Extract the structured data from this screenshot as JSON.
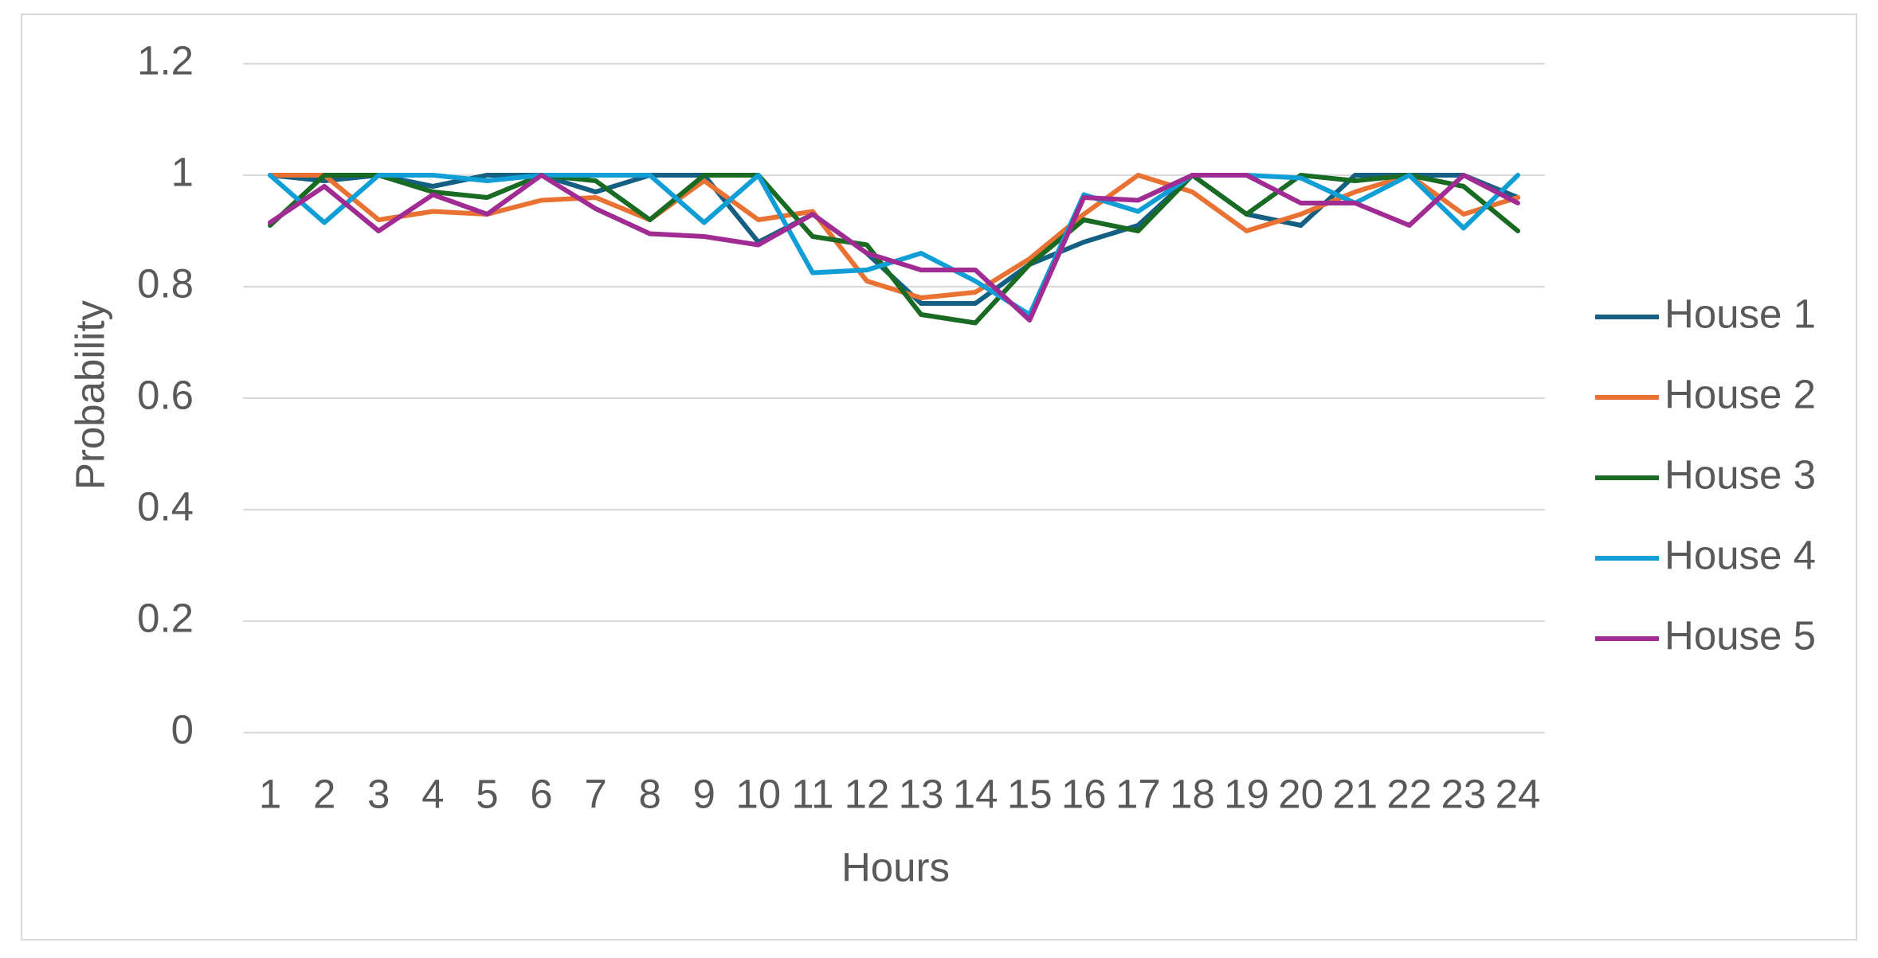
{
  "chart_data": {
    "type": "line",
    "x_label": "Hours",
    "y_label": "Probability",
    "categories": [
      "1",
      "2",
      "3",
      "4",
      "5",
      "6",
      "7",
      "8",
      "9",
      "10",
      "11",
      "12",
      "13",
      "14",
      "15",
      "16",
      "17",
      "18",
      "19",
      "20",
      "21",
      "22",
      "23",
      "24"
    ],
    "series": [
      {
        "name": "House 1",
        "color": "#156082",
        "values": [
          1.0,
          0.99,
          1.0,
          0.98,
          1.0,
          1.0,
          0.97,
          1.0,
          1.0,
          0.88,
          0.93,
          0.86,
          0.77,
          0.77,
          0.84,
          0.88,
          0.91,
          1.0,
          0.93,
          0.91,
          1.0,
          1.0,
          1.0,
          0.96
        ]
      },
      {
        "name": "House 2",
        "color": "#e97132",
        "values": [
          1.0,
          1.0,
          0.92,
          0.935,
          0.93,
          0.955,
          0.96,
          0.92,
          0.99,
          0.92,
          0.935,
          0.81,
          0.78,
          0.79,
          0.85,
          0.93,
          1.0,
          0.97,
          0.9,
          0.93,
          0.97,
          1.0,
          0.93,
          0.96
        ]
      },
      {
        "name": "House 3",
        "color": "#196b24",
        "values": [
          0.91,
          1.0,
          1.0,
          0.97,
          0.96,
          1.0,
          0.99,
          0.92,
          1.0,
          1.0,
          0.89,
          0.875,
          0.75,
          0.735,
          0.84,
          0.92,
          0.9,
          1.0,
          0.93,
          1.0,
          0.99,
          1.0,
          0.98,
          0.9
        ]
      },
      {
        "name": "House 4",
        "color": "#0f9ed5",
        "values": [
          1.0,
          0.915,
          1.0,
          1.0,
          0.99,
          1.0,
          1.0,
          1.0,
          0.915,
          1.0,
          0.825,
          0.83,
          0.86,
          0.81,
          0.75,
          0.965,
          0.935,
          1.0,
          1.0,
          0.995,
          0.95,
          1.0,
          0.905,
          1.0
        ]
      },
      {
        "name": "House 5",
        "color": "#a02b93",
        "values": [
          0.915,
          0.98,
          0.9,
          0.965,
          0.93,
          1.0,
          0.94,
          0.895,
          0.89,
          0.875,
          0.93,
          0.86,
          0.83,
          0.83,
          0.74,
          0.96,
          0.955,
          1.0,
          1.0,
          0.95,
          0.95,
          0.91,
          1.0,
          0.95
        ]
      }
    ],
    "ylim": [
      0,
      1.2
    ],
    "yticks": [
      0,
      0.2,
      0.4,
      0.6,
      0.8,
      1,
      1.2
    ],
    "grid": true,
    "legend": "right"
  }
}
